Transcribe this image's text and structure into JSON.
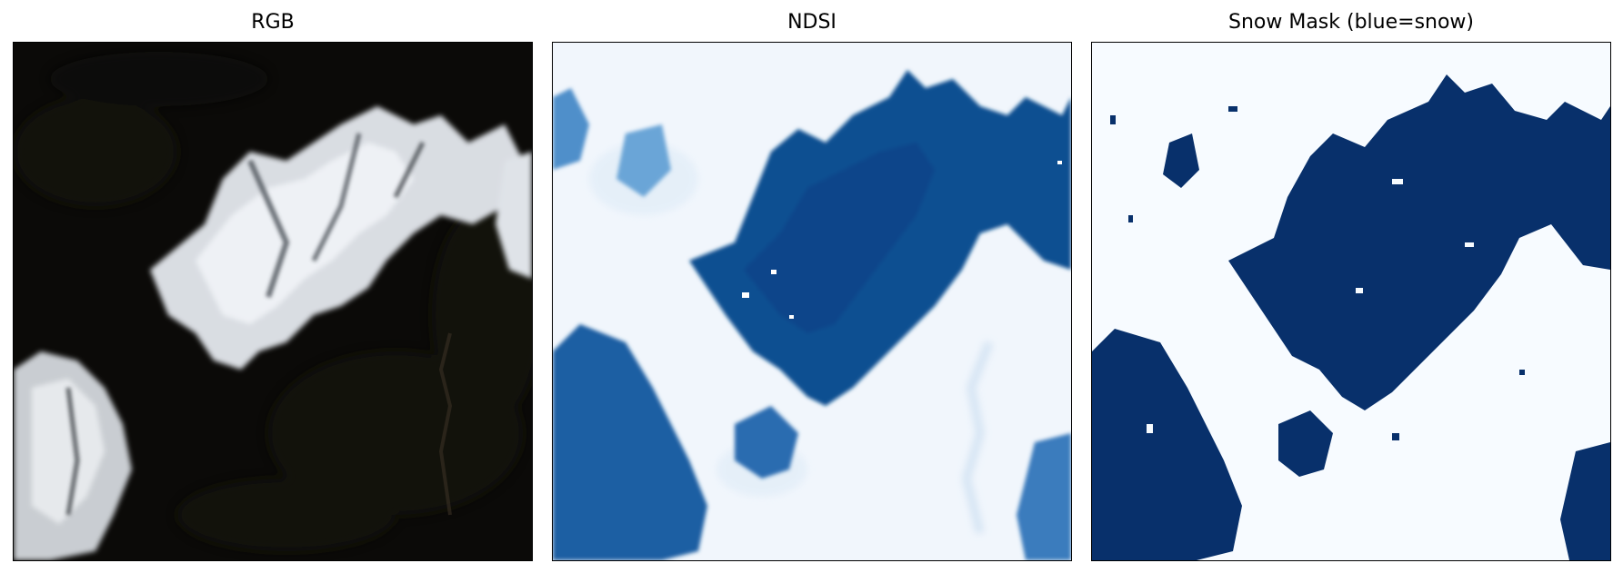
{
  "figure": {
    "panels": [
      {
        "title": "RGB",
        "kind": "true-color satellite image"
      },
      {
        "title": "NDSI",
        "kind": "normalized difference snow index heatmap"
      },
      {
        "title": "Snow Mask (blue=snow)",
        "kind": "binary snow mask"
      }
    ],
    "colors": {
      "rgb_background": "#0b0a08",
      "rgb_snow": "#e9ecf0",
      "ndsi_low": "#f1f6fc",
      "ndsi_high": "#08458a",
      "mask_background": "#f7fbff",
      "mask_snow": "#08306b"
    }
  }
}
